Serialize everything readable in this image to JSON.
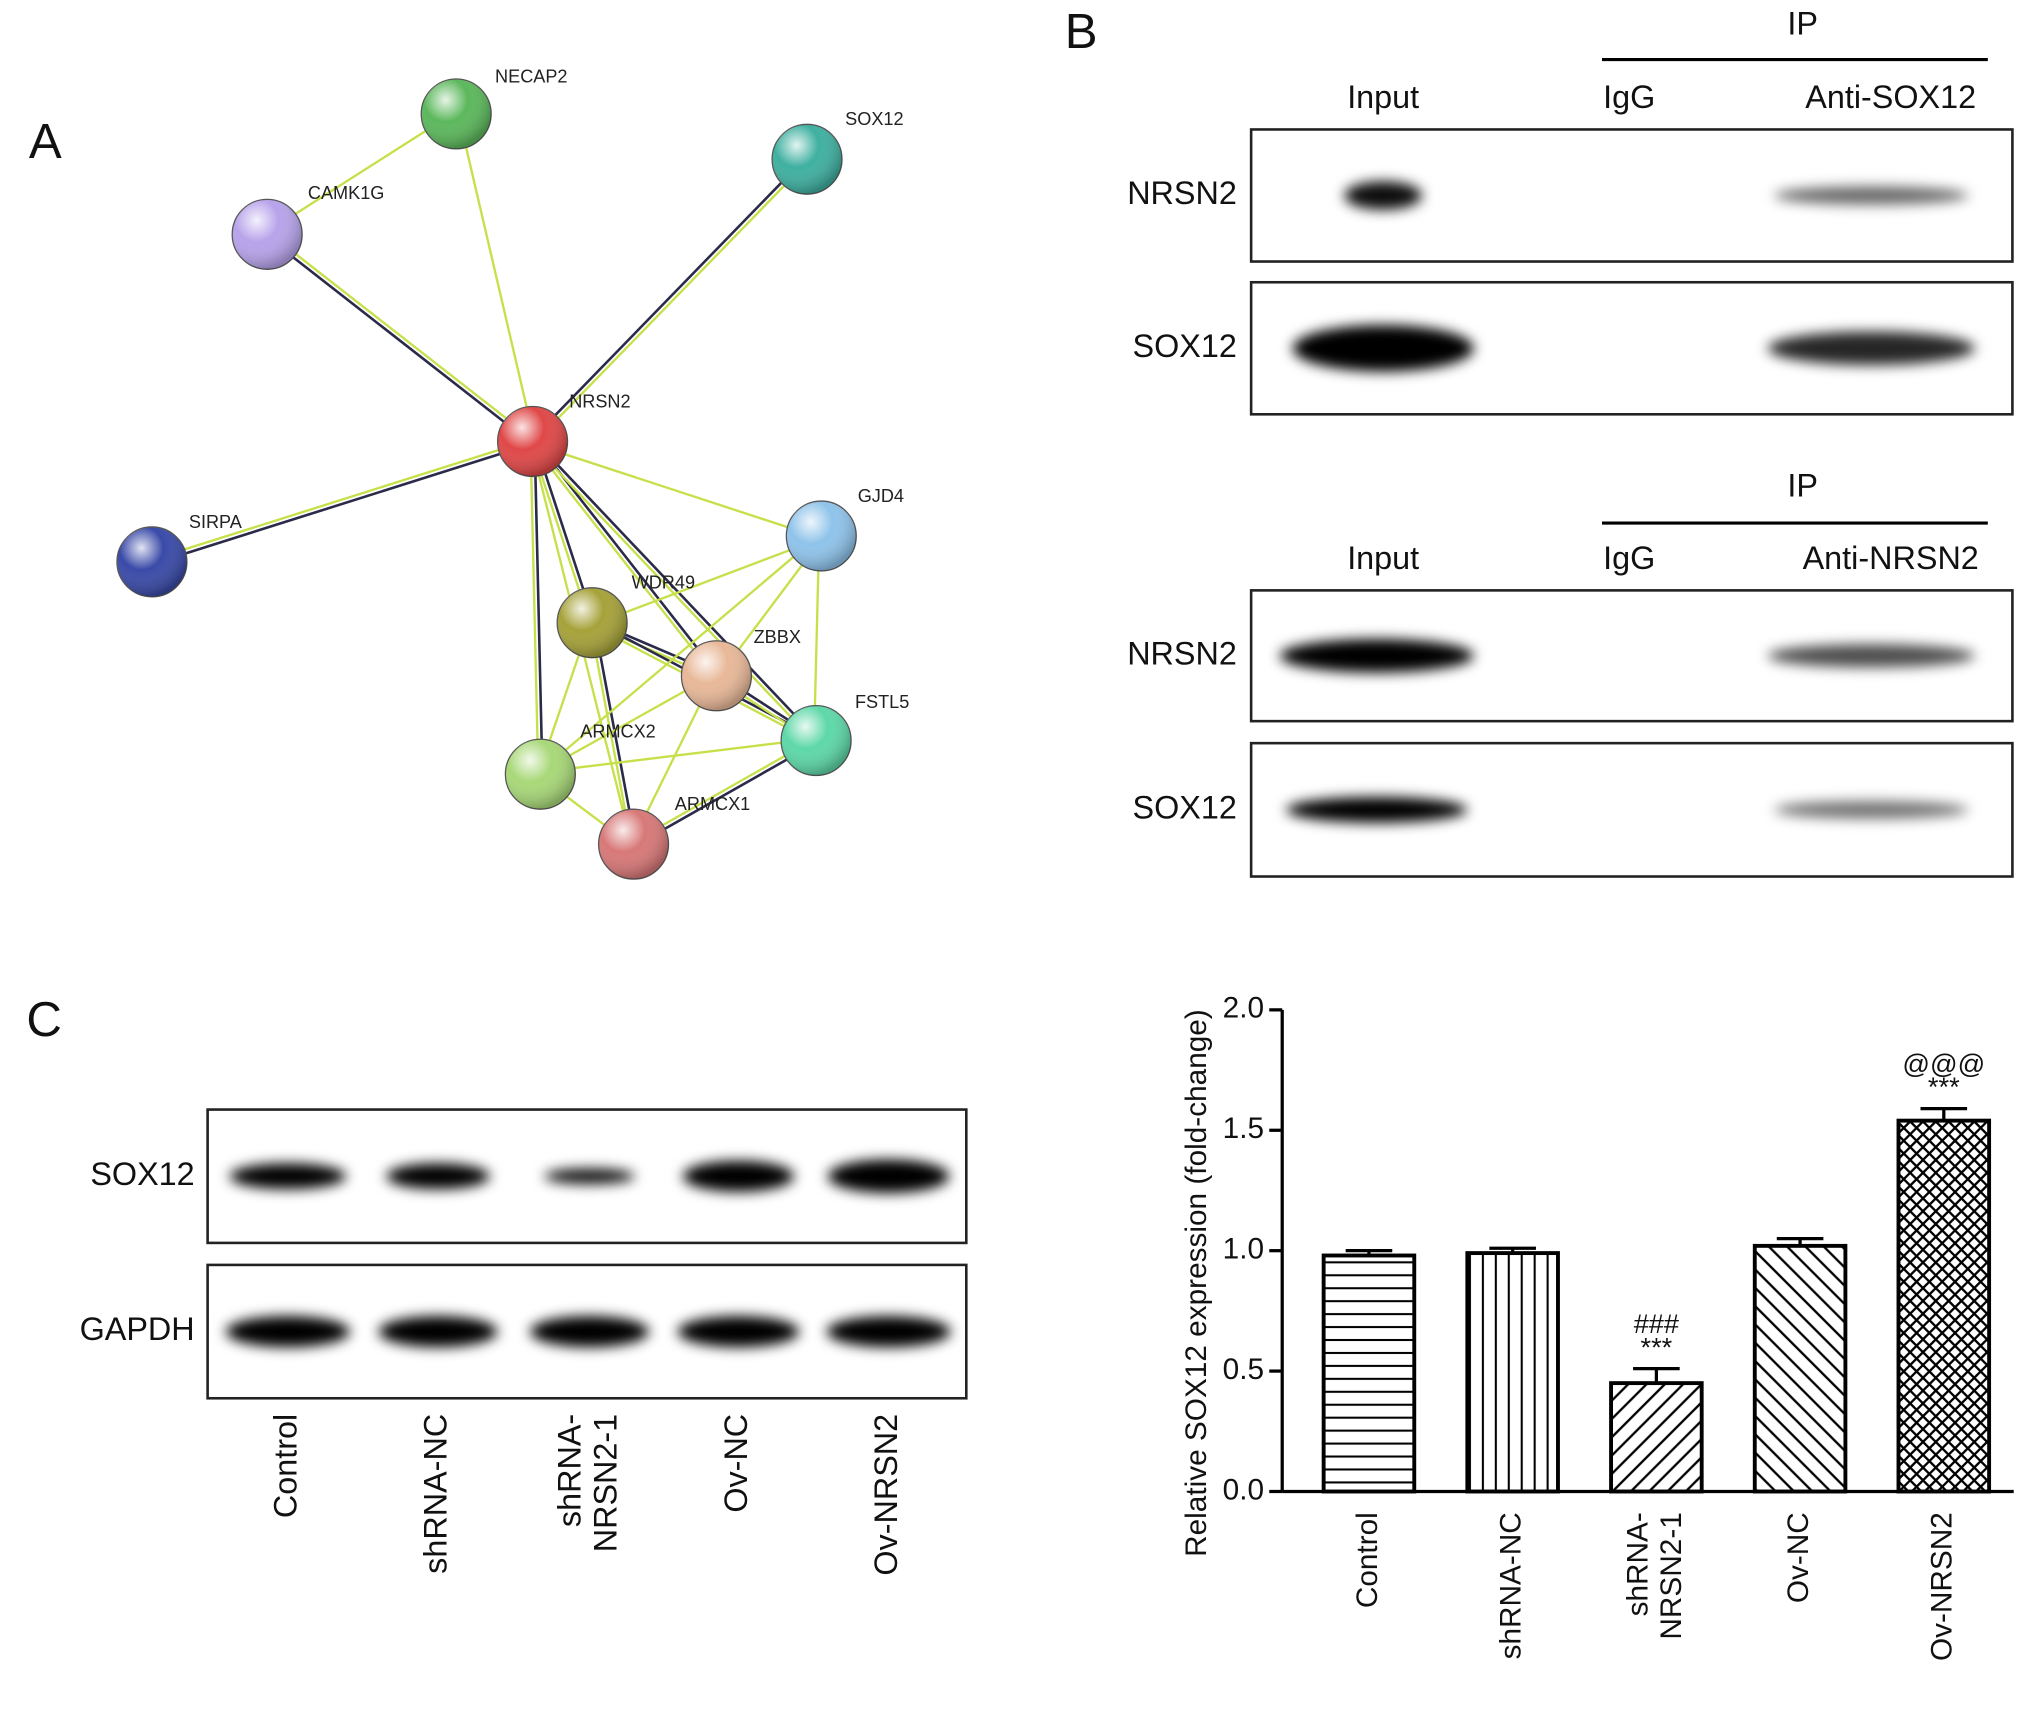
{
  "panel_a": {
    "label": "A",
    "nodes": [
      "NECAP2",
      "SOX12",
      "CAMK1G",
      "NRSN2",
      "SIRPA",
      "GJD4",
      "WDR49",
      "ZBBX",
      "FSTL5",
      "ARMCX2",
      "ARMCX1"
    ]
  },
  "panel_b": {
    "label": "B",
    "blots": [
      {
        "ip": "IP",
        "columns": [
          "Input",
          "IgG",
          "Anti-SOX12"
        ],
        "rows": [
          "NRSN2",
          "SOX12"
        ]
      },
      {
        "ip": "IP",
        "columns": [
          "Input",
          "IgG",
          "Anti-NRSN2"
        ],
        "rows": [
          "NRSN2",
          "SOX12"
        ]
      }
    ]
  },
  "panel_c": {
    "label": "C",
    "blot": {
      "rows": [
        "SOX12",
        "GAPDH"
      ],
      "lanes": [
        "Control",
        "shRNA-NC",
        "shRNA-\nNRSN2-1",
        "Ov-NC",
        "Ov-NRSN2"
      ]
    }
  },
  "chart_data": {
    "type": "bar",
    "y_label": "Relative SOX12 expression (fold-change)",
    "categories": [
      "Control",
      "shRNA-NC",
      "shRNA-\nNRSN2-1",
      "Ov-NC",
      "Ov-NRSN2"
    ],
    "values": [
      0.98,
      0.99,
      0.45,
      1.02,
      1.54
    ],
    "errors": [
      0.02,
      0.02,
      0.06,
      0.03,
      0.05
    ],
    "annotations": [
      null,
      null,
      "###\n***",
      null,
      "@@@\n***"
    ],
    "color": "#000000",
    "ylim": [
      0,
      2
    ],
    "yticks": [
      {
        "value": 0,
        "label": "0.0"
      },
      0.5,
      {
        "value": 1,
        "label": "1.0"
      },
      1.5,
      {
        "value": 2,
        "label": "2.0"
      }
    ]
  }
}
